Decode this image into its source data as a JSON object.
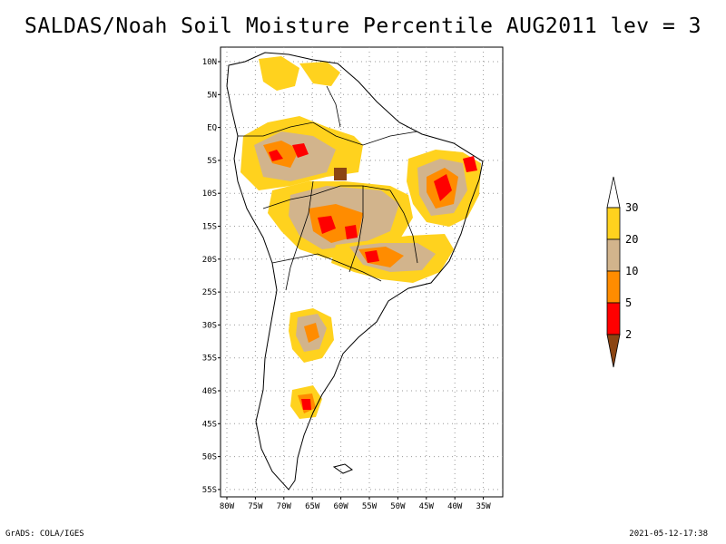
{
  "title": "SALDAS/Noah Soil Moisture Percentile AUG2011 lev = 3",
  "lat_labels": [
    "10N",
    "5N",
    "EQ",
    "5S",
    "10S",
    "15S",
    "20S",
    "25S",
    "30S",
    "35S",
    "40S",
    "45S",
    "50S",
    "55S"
  ],
  "lon_labels": [
    "80W",
    "75W",
    "70W",
    "65W",
    "60W",
    "55W",
    "50W",
    "45W",
    "40W",
    "35W"
  ],
  "colorbar": {
    "ticks": [
      "30",
      "20",
      "10",
      "5",
      "2"
    ],
    "colors": {
      "above_30": "#ffffff",
      "20_30": "#ffd21e",
      "10_20": "#d2b48c",
      "5_10": "#ff8c00",
      "2_5": "#ff0000",
      "below_2": "#8b4513"
    }
  },
  "footer": {
    "left": "GrADS: COLA/IGES",
    "right": "2021-05-12-17:38"
  }
}
